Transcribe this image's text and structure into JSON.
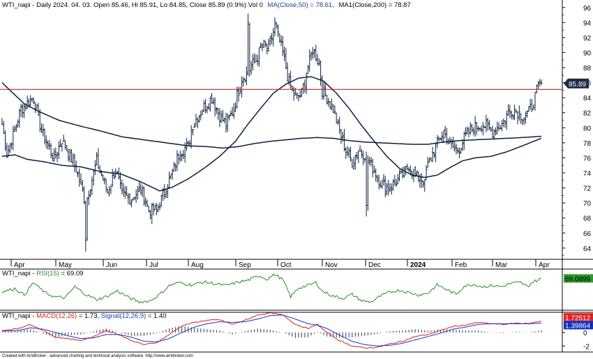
{
  "header": {
    "price_title": "WTI_napi - Daily 2024. 04. 03. Open 85.46, Hi 85.91, Lo 84.85, Close 85.89 (0.9%) Vol 0",
    "ma50_label": "MA(Close,50) = 78.61,",
    "ma200_label": "MA1(Close,200) = 78.87",
    "rsi_prefix": "WTI_napi - ",
    "rsi_label": "RSI(15)",
    "rsi_value": " = 69.09",
    "macd_prefix": "WTI_napi - ",
    "macd_label": "MACD(12,26)",
    "macd_value": " = 1.73, ",
    "signal_label": "Signal(12,26,9)",
    "signal_value": " = 1.40"
  },
  "footer": "Created with AmiBroker - advanced charting and technical analysis software. http://www.amibroker.com",
  "colors": {
    "price_bars": "#0a1f3c",
    "ma_lines": "#0a1f3c",
    "hline": "#d42020",
    "rsi": "#2a8a2a",
    "macd": "#d42020",
    "signal": "#2030c0",
    "hist": "#2b3a55",
    "price_badge": "#1d2b45",
    "rsi_badge": "#2a9a2a",
    "macd_badge": "#e02020",
    "signal_badge": "#1030c0"
  },
  "chart_data": [
    {
      "type": "ohlc",
      "name": "price",
      "y_ticks": [
        64,
        66,
        68,
        70,
        72,
        74,
        76,
        78,
        80,
        82,
        84,
        86,
        88,
        90,
        92,
        94,
        96
      ],
      "ylim": [
        62.5,
        97
      ],
      "x_labels": [
        "Apr",
        "May",
        "Jun",
        "Jul",
        "Aug",
        "Sep",
        "Oct",
        "Nov",
        "Dec",
        "2024",
        "Feb",
        "Mar",
        "Apr"
      ],
      "horizontal_line": 85.1,
      "last_close": "85.89",
      "anchors": [
        [
          0,
          80.5
        ],
        [
          3,
          76.5
        ],
        [
          12,
          82.5
        ],
        [
          20,
          84
        ],
        [
          25,
          79.5
        ],
        [
          33,
          76
        ],
        [
          38,
          78.5
        ],
        [
          47,
          74.5
        ],
        [
          53,
          70
        ],
        [
          60,
          75.5
        ],
        [
          67,
          71.5
        ],
        [
          72,
          74.5
        ],
        [
          76,
          71
        ],
        [
          82,
          70.5
        ],
        [
          88,
          72
        ],
        [
          93,
          69
        ],
        [
          98,
          69
        ],
        [
          104,
          72
        ],
        [
          108,
          74
        ],
        [
          113,
          77
        ],
        [
          118,
          77.5
        ],
        [
          121,
          80.5
        ],
        [
          127,
          82.5
        ],
        [
          133,
          84
        ],
        [
          137,
          82
        ],
        [
          142,
          80.5
        ],
        [
          146,
          82
        ],
        [
          152,
          86.5
        ],
        [
          156,
          87.5
        ],
        [
          161,
          89
        ],
        [
          165,
          91
        ],
        [
          169,
          90.5
        ],
        [
          173,
          93.5
        ],
        [
          178,
          90
        ],
        [
          182,
          86
        ],
        [
          186,
          84
        ],
        [
          190,
          84.5
        ],
        [
          194,
          88
        ],
        [
          197,
          90.5
        ],
        [
          201,
          88.5
        ],
        [
          203,
          85
        ],
        [
          206,
          84
        ],
        [
          210,
          82.5
        ],
        [
          214,
          79.5
        ],
        [
          218,
          77
        ],
        [
          222,
          75.5
        ],
        [
          226,
          77
        ],
        [
          230,
          76.5
        ],
        [
          234,
          75
        ],
        [
          238,
          73.5
        ],
        [
          243,
          72
        ],
        [
          248,
          72.5
        ],
        [
          253,
          73.5
        ],
        [
          258,
          75
        ],
        [
          263,
          73.5
        ],
        [
          267,
          73
        ],
        [
          271,
          75.5
        ],
        [
          275,
          77.5
        ],
        [
          280,
          79.5
        ],
        [
          285,
          77.5
        ],
        [
          289,
          77
        ],
        [
          294,
          79
        ],
        [
          299,
          80
        ],
        [
          305,
          80.5
        ],
        [
          311,
          79.5
        ],
        [
          317,
          80.5
        ],
        [
          321,
          82
        ],
        [
          325,
          82.5
        ],
        [
          330,
          81.5
        ],
        [
          334,
          82
        ],
        [
          337,
          83.5
        ],
        [
          340,
          85.5
        ],
        [
          342,
          85.89
        ]
      ],
      "extremes": [
        [
          53,
          63.5
        ],
        [
          156,
          95.2
        ],
        [
          231,
          68.2
        ],
        [
          268,
          71.5
        ]
      ],
      "ma50_anchors": [
        [
          0,
          76.2
        ],
        [
          8,
          76.4
        ],
        [
          16,
          75.8
        ],
        [
          26,
          75.5
        ],
        [
          38,
          75
        ],
        [
          50,
          74.8
        ],
        [
          62,
          74.2
        ],
        [
          76,
          73.8
        ],
        [
          88,
          72.8
        ],
        [
          100,
          71.6
        ],
        [
          108,
          72.1
        ],
        [
          118,
          73.2
        ],
        [
          128,
          74.6
        ],
        [
          138,
          76.2
        ],
        [
          148,
          78.2
        ],
        [
          156,
          80.5
        ],
        [
          164,
          82.6
        ],
        [
          172,
          84.6
        ],
        [
          180,
          85.8
        ],
        [
          188,
          86.6
        ],
        [
          196,
          86.8
        ],
        [
          204,
          86.2
        ],
        [
          212,
          84.6
        ],
        [
          220,
          82.6
        ],
        [
          228,
          80.3
        ],
        [
          236,
          78.2
        ],
        [
          244,
          76.2
        ],
        [
          252,
          74.6
        ],
        [
          260,
          73.7
        ],
        [
          268,
          73.4
        ],
        [
          276,
          73.7
        ],
        [
          284,
          74.7
        ],
        [
          292,
          75.6
        ],
        [
          300,
          76
        ],
        [
          310,
          76.2
        ],
        [
          320,
          76.8
        ],
        [
          330,
          77.6
        ],
        [
          342,
          78.61
        ]
      ],
      "ma200_anchors": [
        [
          0,
          86
        ],
        [
          6,
          84.8
        ],
        [
          14,
          83.2
        ],
        [
          24,
          82.1
        ],
        [
          36,
          81
        ],
        [
          50,
          80.2
        ],
        [
          62,
          79.6
        ],
        [
          76,
          78.8
        ],
        [
          90,
          78.4
        ],
        [
          104,
          78
        ],
        [
          118,
          77.6
        ],
        [
          130,
          77.5
        ],
        [
          140,
          77.3
        ],
        [
          150,
          77.5
        ],
        [
          160,
          77.9
        ],
        [
          170,
          78.2
        ],
        [
          180,
          78.4
        ],
        [
          190,
          78.6
        ],
        [
          200,
          78.7
        ],
        [
          210,
          78.6
        ],
        [
          220,
          78.3
        ],
        [
          230,
          78.1
        ],
        [
          240,
          78
        ],
        [
          250,
          77.9
        ],
        [
          260,
          77.8
        ],
        [
          270,
          77.8
        ],
        [
          280,
          78.1
        ],
        [
          290,
          78.3
        ],
        [
          300,
          78.4
        ],
        [
          310,
          78.5
        ],
        [
          320,
          78.6
        ],
        [
          330,
          78.7
        ],
        [
          342,
          78.87
        ]
      ]
    },
    {
      "type": "line",
      "name": "RSI(15)",
      "ylim": [
        15,
        85
      ],
      "last_value": "69.0899",
      "anchors": [
        [
          0,
          46
        ],
        [
          8,
          52
        ],
        [
          14,
          41
        ],
        [
          20,
          62
        ],
        [
          27,
          45
        ],
        [
          33,
          38
        ],
        [
          40,
          36
        ],
        [
          46,
          55
        ],
        [
          53,
          42
        ],
        [
          60,
          33
        ],
        [
          67,
          39
        ],
        [
          73,
          48
        ],
        [
          80,
          37
        ],
        [
          87,
          29
        ],
        [
          94,
          31
        ],
        [
          100,
          42
        ],
        [
          106,
          57
        ],
        [
          112,
          62
        ],
        [
          120,
          58
        ],
        [
          128,
          63
        ],
        [
          135,
          60
        ],
        [
          142,
          57
        ],
        [
          150,
          63
        ],
        [
          156,
          66
        ],
        [
          163,
          74
        ],
        [
          168,
          68
        ],
        [
          173,
          76
        ],
        [
          178,
          67
        ],
        [
          183,
          38
        ],
        [
          188,
          53
        ],
        [
          194,
          57
        ],
        [
          199,
          62
        ],
        [
          203,
          48
        ],
        [
          209,
          40
        ],
        [
          216,
          35
        ],
        [
          222,
          42
        ],
        [
          228,
          31
        ],
        [
          234,
          29
        ],
        [
          240,
          39
        ],
        [
          246,
          46
        ],
        [
          252,
          49
        ],
        [
          258,
          45
        ],
        [
          264,
          41
        ],
        [
          270,
          44
        ],
        [
          276,
          58
        ],
        [
          282,
          50
        ],
        [
          288,
          42
        ],
        [
          293,
          56
        ],
        [
          299,
          59
        ],
        [
          305,
          55
        ],
        [
          311,
          57
        ],
        [
          317,
          55
        ],
        [
          323,
          61
        ],
        [
          329,
          62
        ],
        [
          333,
          55
        ],
        [
          337,
          64
        ],
        [
          340,
          66
        ],
        [
          342,
          69.09
        ]
      ]
    },
    {
      "type": "line",
      "name": "MACD(12,26)",
      "ylim": [
        -2.9,
        3.0
      ],
      "y_ticks": [
        -2,
        0
      ],
      "macd_last": "1.72512",
      "signal_last": "1.39864",
      "macd_anchors": [
        [
          0,
          0.3
        ],
        [
          10,
          0.6
        ],
        [
          18,
          1.2
        ],
        [
          26,
          0.3
        ],
        [
          34,
          -0.7
        ],
        [
          42,
          -0.9
        ],
        [
          50,
          -1.2
        ],
        [
          58,
          -0.6
        ],
        [
          66,
          0.3
        ],
        [
          74,
          -0.3
        ],
        [
          82,
          -1.2
        ],
        [
          90,
          -1.8
        ],
        [
          98,
          -1.5
        ],
        [
          106,
          -0.3
        ],
        [
          114,
          1.0
        ],
        [
          122,
          1.5
        ],
        [
          130,
          1.8
        ],
        [
          138,
          1.9
        ],
        [
          146,
          1.2
        ],
        [
          154,
          1.8
        ],
        [
          162,
          2.6
        ],
        [
          170,
          2.9
        ],
        [
          178,
          2.6
        ],
        [
          186,
          1.2
        ],
        [
          194,
          0.6
        ],
        [
          200,
          1.2
        ],
        [
          206,
          0.0
        ],
        [
          214,
          -1.2
        ],
        [
          222,
          -2.0
        ],
        [
          230,
          -2.3
        ],
        [
          238,
          -2.2
        ],
        [
          246,
          -1.7
        ],
        [
          254,
          -1.3
        ],
        [
          262,
          -0.6
        ],
        [
          270,
          -0.3
        ],
        [
          278,
          0.3
        ],
        [
          286,
          0.9
        ],
        [
          294,
          1.1
        ],
        [
          302,
          1.5
        ],
        [
          310,
          1.3
        ],
        [
          318,
          1.2
        ],
        [
          326,
          1.4
        ],
        [
          334,
          1.3
        ],
        [
          342,
          1.73
        ]
      ],
      "signal_anchors": [
        [
          0,
          0.2
        ],
        [
          10,
          0.3
        ],
        [
          18,
          0.7
        ],
        [
          26,
          0.5
        ],
        [
          34,
          0.0
        ],
        [
          42,
          -0.5
        ],
        [
          50,
          -0.9
        ],
        [
          58,
          -0.8
        ],
        [
          66,
          -0.3
        ],
        [
          74,
          -0.3
        ],
        [
          82,
          -0.7
        ],
        [
          90,
          -1.3
        ],
        [
          98,
          -1.4
        ],
        [
          106,
          -0.9
        ],
        [
          114,
          0.0
        ],
        [
          122,
          0.8
        ],
        [
          130,
          1.3
        ],
        [
          138,
          1.6
        ],
        [
          146,
          1.5
        ],
        [
          154,
          1.6
        ],
        [
          162,
          2.0
        ],
        [
          170,
          2.5
        ],
        [
          178,
          2.6
        ],
        [
          186,
          2.0
        ],
        [
          194,
          1.3
        ],
        [
          200,
          1.1
        ],
        [
          206,
          0.6
        ],
        [
          214,
          -0.4
        ],
        [
          222,
          -1.3
        ],
        [
          230,
          -1.8
        ],
        [
          238,
          -2.0
        ],
        [
          246,
          -1.9
        ],
        [
          254,
          -1.6
        ],
        [
          262,
          -1.1
        ],
        [
          270,
          -0.6
        ],
        [
          278,
          -0.1
        ],
        [
          286,
          0.5
        ],
        [
          294,
          0.8
        ],
        [
          302,
          1.2
        ],
        [
          310,
          1.3
        ],
        [
          318,
          1.3
        ],
        [
          326,
          1.3
        ],
        [
          334,
          1.3
        ],
        [
          342,
          1.4
        ]
      ]
    }
  ]
}
